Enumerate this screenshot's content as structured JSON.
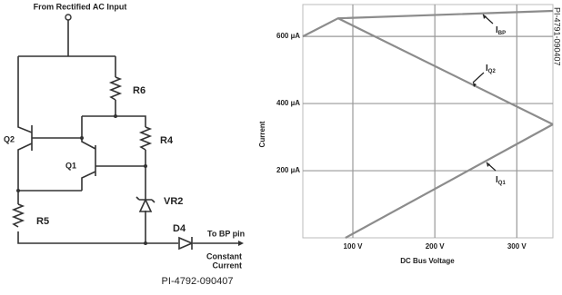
{
  "circuit": {
    "input_label": "From Rectified AC Input",
    "components": [
      "R6",
      "Q2",
      "R4",
      "Q1",
      "VR2",
      "R5",
      "D4"
    ],
    "output_label": "To BP pin",
    "output_note": [
      "Constant",
      "Current"
    ],
    "figure_id": "PI-4792-090407"
  },
  "chart_data": {
    "type": "line",
    "figure_id": "PI-4791-090407",
    "xlabel": "DC Bus Voltage",
    "ylabel": "Current",
    "xlim": [
      39,
      344
    ],
    "ylim": [
      0,
      695
    ],
    "xticks": [
      {
        "value": 100,
        "label": "100 V"
      },
      {
        "value": 200,
        "label": "200 V"
      },
      {
        "value": 300,
        "label": "300 V"
      }
    ],
    "yticks": [
      {
        "value": 200,
        "label": "200 µA"
      },
      {
        "value": 400,
        "label": "400 µA"
      },
      {
        "value": 600,
        "label": "600 µA"
      }
    ],
    "grid": true,
    "series": [
      {
        "name": "I",
        "subscript": "BP",
        "color": "#8c8c8c",
        "x": [
          39,
          82,
          344
        ],
        "values": [
          600,
          654,
          676
        ]
      },
      {
        "name": "I",
        "subscript": "Q2",
        "color": "#8c8c8c",
        "x": [
          82,
          344
        ],
        "values": [
          654,
          338
        ]
      },
      {
        "name": "I",
        "subscript": "Q1",
        "color": "#8c8c8c",
        "x": [
          91,
          344
        ],
        "values": [
          0,
          338
        ]
      }
    ]
  }
}
